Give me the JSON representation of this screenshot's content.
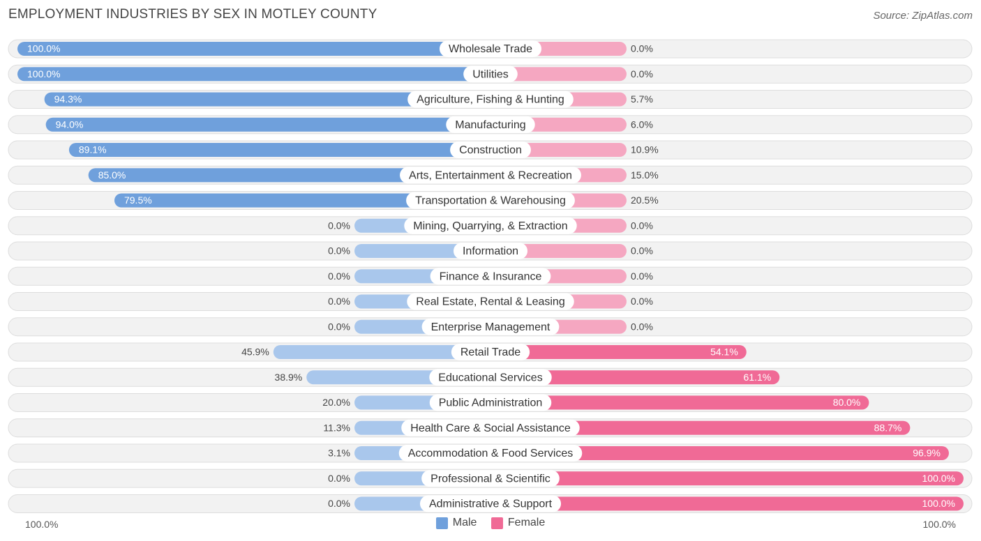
{
  "title": "EMPLOYMENT INDUSTRIES BY SEX IN MOTLEY COUNTY",
  "source": "Source: ZipAtlas.com",
  "axis": {
    "left_label": "100.0%",
    "right_label": "100.0%"
  },
  "colors": {
    "male": "#6fa0dc",
    "male_light": "#a9c7ec",
    "female": "#f06a96",
    "female_light": "#f5a7c1",
    "track": "#f2f2f2",
    "track_border": "#dddddd"
  },
  "legend": [
    {
      "name": "Male",
      "color": "#6fa0dc"
    },
    {
      "name": "Female",
      "color": "#f06a96"
    }
  ],
  "chart_data": {
    "type": "bar",
    "orientation": "horizontal-diverging",
    "title": "EMPLOYMENT INDUSTRIES BY SEX IN MOTLEY COUNTY",
    "xlim": [
      -100,
      100
    ],
    "series": [
      {
        "name": "Male",
        "values": [
          100.0,
          100.0,
          94.3,
          94.0,
          89.1,
          85.0,
          79.5,
          0.0,
          0.0,
          0.0,
          0.0,
          0.0,
          45.9,
          38.9,
          20.0,
          11.3,
          3.1,
          0.0,
          0.0
        ]
      },
      {
        "name": "Female",
        "values": [
          0.0,
          0.0,
          5.7,
          6.0,
          10.9,
          15.0,
          20.5,
          0.0,
          0.0,
          0.0,
          0.0,
          0.0,
          54.1,
          61.1,
          80.0,
          88.7,
          96.9,
          100.0,
          100.0
        ]
      }
    ],
    "categories": [
      "Wholesale Trade",
      "Utilities",
      "Agriculture, Fishing & Hunting",
      "Manufacturing",
      "Construction",
      "Arts, Entertainment & Recreation",
      "Transportation & Warehousing",
      "Mining, Quarrying, & Extraction",
      "Information",
      "Finance & Insurance",
      "Real Estate, Rental & Leasing",
      "Enterprise Management",
      "Retail Trade",
      "Educational Services",
      "Public Administration",
      "Health Care & Social Assistance",
      "Accommodation & Food Services",
      "Professional & Scientific",
      "Administrative & Support"
    ],
    "male_labels": [
      "100.0%",
      "100.0%",
      "94.3%",
      "94.0%",
      "89.1%",
      "85.0%",
      "79.5%",
      "0.0%",
      "0.0%",
      "0.0%",
      "0.0%",
      "0.0%",
      "45.9%",
      "38.9%",
      "20.0%",
      "11.3%",
      "3.1%",
      "0.0%",
      "0.0%"
    ],
    "female_labels": [
      "0.0%",
      "0.0%",
      "5.7%",
      "6.0%",
      "10.9%",
      "15.0%",
      "20.5%",
      "0.0%",
      "0.0%",
      "0.0%",
      "0.0%",
      "0.0%",
      "54.1%",
      "61.1%",
      "80.0%",
      "88.7%",
      "96.9%",
      "100.0%",
      "100.0%"
    ]
  }
}
